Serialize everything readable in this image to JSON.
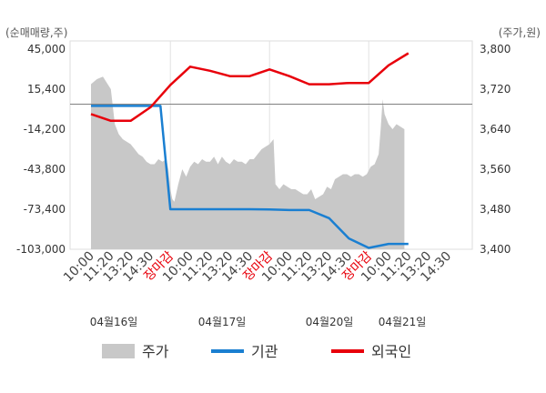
{
  "chart_data": {
    "type": "line",
    "left_axis": {
      "unit_label": "(순매매량,주)",
      "ticks": [
        "45,000",
        "15,400",
        "-14,200",
        "-43,800",
        "-73,400",
        "-103,000"
      ],
      "ylim": [
        -103000,
        45000
      ]
    },
    "right_axis": {
      "unit_label": "(주가,원)",
      "ticks": [
        "3,800",
        "3,720",
        "3,640",
        "3,560",
        "3,480",
        "3,400"
      ],
      "ylim": [
        3400,
        3800
      ]
    },
    "x_ticks": [
      {
        "label": "10:00",
        "close": false
      },
      {
        "label": "11:20",
        "close": false
      },
      {
        "label": "13:20",
        "close": false
      },
      {
        "label": "14:30",
        "close": false
      },
      {
        "label": "장마감",
        "close": true
      },
      {
        "label": "10:00",
        "close": false
      },
      {
        "label": "11:20",
        "close": false
      },
      {
        "label": "13:20",
        "close": false
      },
      {
        "label": "14:30",
        "close": false
      },
      {
        "label": "장마감",
        "close": true
      },
      {
        "label": "10:00",
        "close": false
      },
      {
        "label": "11:20",
        "close": false
      },
      {
        "label": "13:20",
        "close": false
      },
      {
        "label": "14:30",
        "close": false
      },
      {
        "label": "장마감",
        "close": true
      },
      {
        "label": "10:00",
        "close": false
      },
      {
        "label": "11:20",
        "close": false
      },
      {
        "label": "13:20",
        "close": false
      },
      {
        "label": "14:30",
        "close": false
      }
    ],
    "dates": [
      "04월16일",
      "04월17일",
      "04월20일",
      "04월21일"
    ],
    "reference_line_value": 3690,
    "legend": [
      "주가",
      "기관",
      "외국인"
    ],
    "colors": {
      "price": "#c8c8c8",
      "institution": "#1a7fd1",
      "foreign": "#e8000b",
      "grid": "#e0e0e0",
      "ref": "#808080"
    },
    "series": [
      {
        "name": "기관",
        "axis": "left",
        "x": [
          0.0,
          0.5,
          1.0,
          2.0,
          3.0,
          3.5,
          4.0,
          5.0,
          6.0,
          7.0,
          8.0,
          9.0,
          10.0,
          11.0,
          12.0,
          13.0,
          14.0,
          15.0,
          15.3,
          16.0
        ],
        "values": [
          3000,
          3000,
          3000,
          3000,
          3000,
          3000,
          -73400,
          -73400,
          -73400,
          -73400,
          -73400,
          -73600,
          -74000,
          -74000,
          -80000,
          -95000,
          -102000,
          -99000,
          -99000,
          -99000
        ]
      },
      {
        "name": "외국인",
        "axis": "left",
        "x": [
          0.0,
          1.0,
          2.0,
          3.0,
          4.0,
          5.0,
          6.0,
          7.0,
          8.0,
          9.0,
          10.0,
          11.0,
          12.0,
          13.0,
          14.0,
          15.0,
          16.0
        ],
        "values": [
          -3000,
          -8000,
          -8000,
          2000,
          18500,
          32000,
          29000,
          25000,
          25000,
          30000,
          25000,
          19000,
          19000,
          20000,
          20000,
          33000,
          42000
        ]
      },
      {
        "name": "주가",
        "axis": "right",
        "x": [
          0.0,
          0.3,
          0.6,
          1.0,
          1.2,
          1.4,
          1.6,
          1.8,
          2.0,
          2.2,
          2.4,
          2.6,
          2.8,
          3.0,
          3.2,
          3.4,
          3.6,
          3.8,
          3.9,
          4.0,
          4.1,
          4.2,
          4.4,
          4.6,
          4.8,
          5.0,
          5.2,
          5.4,
          5.6,
          5.8,
          6.0,
          6.2,
          6.4,
          6.6,
          6.8,
          7.0,
          7.2,
          7.4,
          7.6,
          7.8,
          8.0,
          8.2,
          8.4,
          8.6,
          8.8,
          9.0,
          9.2,
          9.3,
          9.5,
          9.7,
          9.9,
          10.1,
          10.3,
          10.5,
          10.7,
          10.9,
          11.1,
          11.3,
          11.5,
          11.7,
          11.9,
          12.1,
          12.3,
          12.5,
          12.7,
          12.9,
          13.1,
          13.3,
          13.5,
          13.7,
          13.9,
          14.1,
          14.3,
          14.5,
          14.6,
          14.7,
          14.8,
          15.0,
          15.2,
          15.4,
          15.6,
          15.8
        ],
        "values": [
          3730,
          3740,
          3745,
          3720,
          3650,
          3630,
          3620,
          3615,
          3610,
          3600,
          3590,
          3585,
          3575,
          3570,
          3570,
          3580,
          3575,
          3580,
          3560,
          3520,
          3500,
          3495,
          3530,
          3560,
          3545,
          3565,
          3575,
          3570,
          3580,
          3575,
          3575,
          3585,
          3570,
          3585,
          3575,
          3570,
          3580,
          3575,
          3575,
          3570,
          3580,
          3580,
          3590,
          3600,
          3605,
          3610,
          3620,
          3530,
          3520,
          3530,
          3525,
          3520,
          3520,
          3515,
          3510,
          3510,
          3520,
          3500,
          3505,
          3510,
          3525,
          3520,
          3540,
          3545,
          3550,
          3550,
          3545,
          3550,
          3550,
          3545,
          3550,
          3565,
          3570,
          3590,
          3640,
          3700,
          3670,
          3650,
          3640,
          3650,
          3645,
          3640
        ]
      }
    ]
  }
}
